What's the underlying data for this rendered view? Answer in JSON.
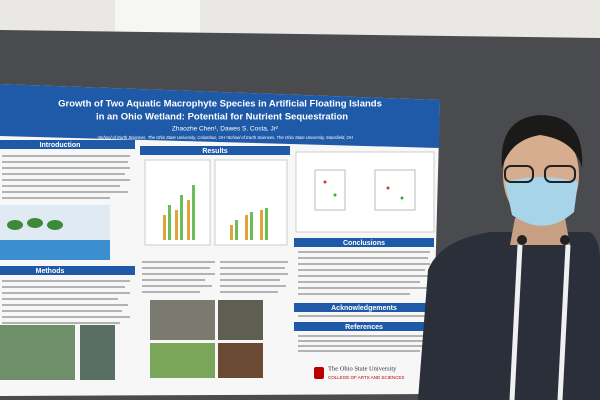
{
  "poster": {
    "title": [
      "Growth of Two Aquatic Macrophyte Species in Artificial Floating Islands",
      "in an Ohio Wetland: Potential for Nutrient Sequestration"
    ],
    "authors": "Zhaozhe Chen¹, Dawes S. Costa, Jr²",
    "affiliations": "¹School of Earth Sciences, The Ohio State University, Columbus, OH   ²School of Earth Sciences, The Ohio State University, Mansfield, OH",
    "sections": {
      "introduction": "Introduction",
      "methods": "Methods",
      "results": "Results",
      "conclusions": "Conclusions",
      "acknowledgements": "Acknowledgements",
      "references": "References"
    },
    "logo": {
      "name": "The Ohio State University",
      "college": "COLLEGE OF ARTS AND SCIENCES"
    }
  }
}
